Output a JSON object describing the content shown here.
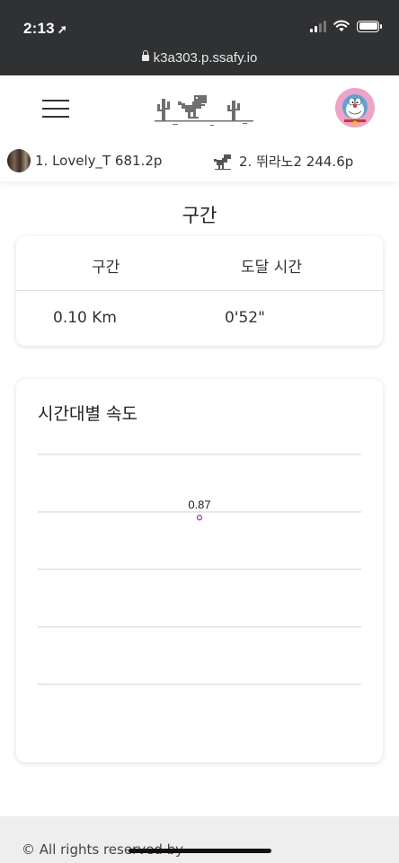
{
  "status_bar": {
    "time": "2:13",
    "location_glyph": "➚",
    "icons": [
      "signal-icon",
      "wifi-icon",
      "battery-icon"
    ]
  },
  "browser": {
    "url": "k3a303.p.ssafy.io"
  },
  "header": {
    "menu_icon": "hamburger-icon",
    "logo": "dino-cactus-logo",
    "avatar": "doraemon-avatar"
  },
  "ranking": [
    {
      "label": "1. Lovely_T 681.2p"
    },
    {
      "label": "2. 뛰라노2 244.6p"
    }
  ],
  "split_section": {
    "title": "구간",
    "columns": [
      "구간",
      "도달 시간"
    ],
    "rows": [
      {
        "distance": "0.10 Km",
        "time": "0'52\""
      }
    ]
  },
  "chart_section": {
    "title": "시간대별 속도"
  },
  "chart_data": {
    "type": "line",
    "x": [
      1
    ],
    "series": [
      {
        "values": [
          0.87
        ],
        "data_labels": [
          "0.87"
        ]
      }
    ],
    "ylim": [
      0,
      1.2
    ],
    "grid": true,
    "axes_visible": false,
    "colors": {
      "point": "#9b3fb0",
      "grid": "#d0d0d0"
    }
  },
  "footer": {
    "text": "© All rights reserved by"
  }
}
